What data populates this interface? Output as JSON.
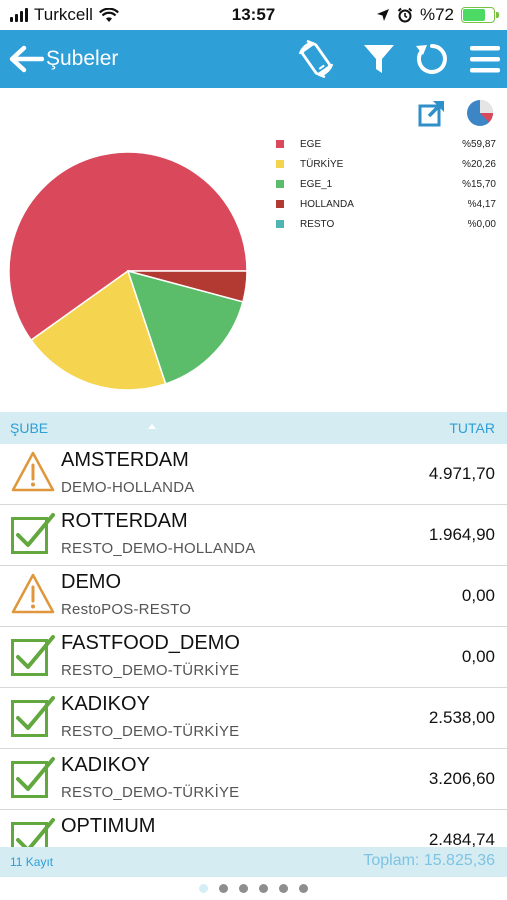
{
  "status_bar": {
    "carrier": "Turkcell",
    "time": "13:57",
    "battery_percent": "%72",
    "battery_level": 0.72
  },
  "nav": {
    "title": "Şubeler",
    "back_icon": "arrow-left-icon",
    "actions": [
      "rotate-device-icon",
      "filter-icon",
      "refresh-icon",
      "menu-icon"
    ],
    "bar_color": "#2f9fd8"
  },
  "chart_data": {
    "type": "pie",
    "title": "",
    "legend_position": "right",
    "slices": [
      {
        "label": "EGE",
        "value": 59.87,
        "display": "%59,87",
        "color": "#d9485b"
      },
      {
        "label": "TÜRKİYE",
        "value": 20.26,
        "display": "%20,26",
        "color": "#f5d44f"
      },
      {
        "label": "EGE_1",
        "value": 15.7,
        "display": "%15,70",
        "color": "#5bbd6a"
      },
      {
        "label": "HOLLANDA",
        "value": 4.17,
        "display": "%4,17",
        "color": "#b23a32"
      },
      {
        "label": "RESTO",
        "value": 0.0,
        "display": "%0,00",
        "color": "#4fb5b2"
      }
    ],
    "start_angle_deg": 0
  },
  "table": {
    "header": {
      "branch": "ŞUBE",
      "amount": "TUTAR"
    },
    "rows": [
      {
        "status": "warning",
        "title": "AMSTERDAM",
        "subtitle": "DEMO-HOLLANDA",
        "amount": "4.971,70"
      },
      {
        "status": "ok",
        "title": "ROTTERDAM",
        "subtitle": "RESTO_DEMO-HOLLANDA",
        "amount": "1.964,90"
      },
      {
        "status": "warning",
        "title": "DEMO",
        "subtitle": "RestoPOS-RESTO",
        "amount": "0,00"
      },
      {
        "status": "ok",
        "title": "FASTFOOD_DEMO",
        "subtitle": "RESTO_DEMO-TÜRKİYE",
        "amount": "0,00"
      },
      {
        "status": "ok",
        "title": "KADIKOY",
        "subtitle": "RESTO_DEMO-TÜRKİYE",
        "amount": "2.538,00"
      },
      {
        "status": "ok",
        "title": "KADIKOY",
        "subtitle": "RESTO_DEMO-TÜRKİYE",
        "amount": "3.206,60"
      },
      {
        "status": "ok",
        "title": "OPTIMUM",
        "subtitle": "",
        "amount": "2.484,74"
      }
    ]
  },
  "footer": {
    "count": "11 Kayıt",
    "total": "Toplam: 15.825,36"
  },
  "pager": {
    "count": 6,
    "active_index": 0
  },
  "colors": {
    "accent": "#2f9fd8",
    "header_bg": "#d4ecf2",
    "warning": "#e0963a",
    "ok": "#63a83f"
  }
}
